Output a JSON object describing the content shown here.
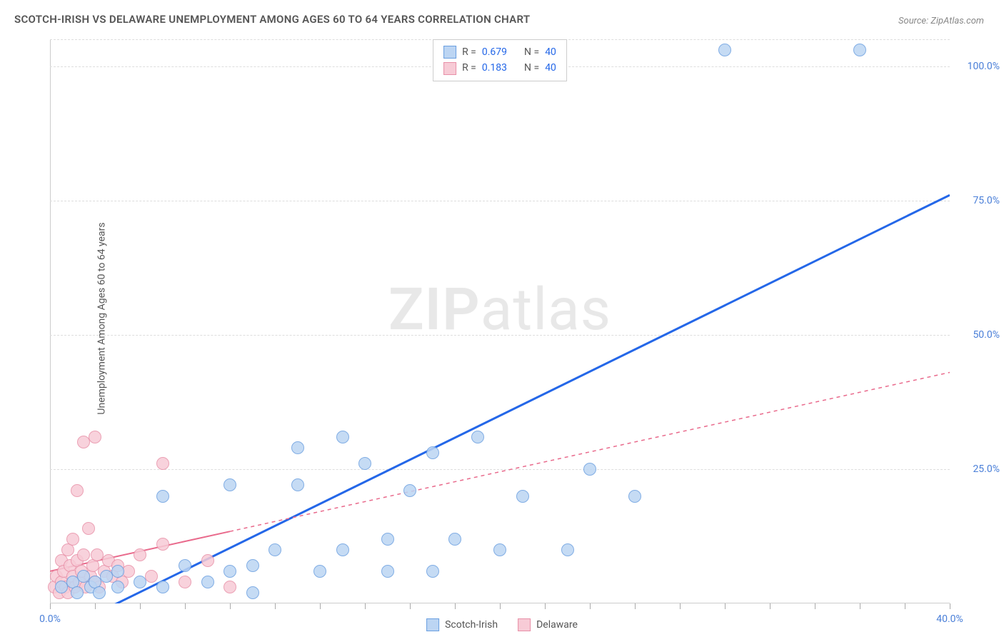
{
  "title": "SCOTCH-IRISH VS DELAWARE UNEMPLOYMENT AMONG AGES 60 TO 64 YEARS CORRELATION CHART",
  "source": "Source: ZipAtlas.com",
  "y_axis_label": "Unemployment Among Ages 60 to 64 years",
  "watermark": {
    "bold": "ZIP",
    "light": "atlas"
  },
  "chart": {
    "type": "scatter",
    "background_color": "#ffffff",
    "grid_color": "#dddddd",
    "axis_color": "#cccccc",
    "xlim": [
      0,
      40
    ],
    "ylim": [
      0,
      105
    ],
    "x_ticks_minor": [
      0,
      2,
      4,
      6,
      8,
      10,
      12,
      14,
      16,
      18,
      20,
      22,
      24,
      26,
      28,
      30,
      32,
      34,
      36,
      38,
      40
    ],
    "x_tick_labels": [
      {
        "pos": 0,
        "label": "0.0%"
      },
      {
        "pos": 40,
        "label": "40.0%"
      }
    ],
    "y_gridlines": [
      25,
      50,
      75,
      100,
      105
    ],
    "y_tick_labels": [
      {
        "pos": 25,
        "label": "25.0%"
      },
      {
        "pos": 50,
        "label": "50.0%"
      },
      {
        "pos": 75,
        "label": "75.0%"
      },
      {
        "pos": 100,
        "label": "100.0%"
      }
    ],
    "series": [
      {
        "name": "Scotch-Irish",
        "legend_label": "Scotch-Irish",
        "point_fill": "#bcd5f3",
        "point_stroke": "#6a9fe0",
        "point_radius": 9,
        "trend_color": "#2467e8",
        "trend_width": 3,
        "trend_dash": "none",
        "trend": {
          "x1": 2,
          "y1": -2,
          "x2": 40,
          "y2": 76
        },
        "R": "0.679",
        "N": "40",
        "points": [
          [
            0.5,
            3
          ],
          [
            1,
            4
          ],
          [
            1.2,
            2
          ],
          [
            1.5,
            5
          ],
          [
            1.8,
            3
          ],
          [
            2,
            4
          ],
          [
            2.2,
            2
          ],
          [
            2.5,
            5
          ],
          [
            3,
            3
          ],
          [
            3,
            6
          ],
          [
            4,
            4
          ],
          [
            5,
            3
          ],
          [
            5,
            20
          ],
          [
            6,
            7
          ],
          [
            7,
            4
          ],
          [
            8,
            6
          ],
          [
            8,
            22
          ],
          [
            9,
            7
          ],
          [
            9,
            2
          ],
          [
            10,
            10
          ],
          [
            11,
            22
          ],
          [
            11,
            29
          ],
          [
            12,
            6
          ],
          [
            13,
            10
          ],
          [
            13,
            31
          ],
          [
            14,
            26
          ],
          [
            15,
            6
          ],
          [
            15,
            12
          ],
          [
            16,
            21
          ],
          [
            17,
            6
          ],
          [
            17,
            28
          ],
          [
            18,
            12
          ],
          [
            19,
            31
          ],
          [
            20,
            10
          ],
          [
            21,
            20
          ],
          [
            23,
            10
          ],
          [
            24,
            25
          ],
          [
            26,
            20
          ],
          [
            30,
            103
          ],
          [
            36,
            103
          ]
        ]
      },
      {
        "name": "Delaware",
        "legend_label": "Delaware",
        "point_fill": "#f7cbd6",
        "point_stroke": "#e890a8",
        "point_radius": 9,
        "trend_color": "#e96a8c",
        "trend_width": 2,
        "trend_dash": "5,5",
        "trend_solid_until": 8,
        "trend": {
          "x1": 0,
          "y1": 6,
          "x2": 40,
          "y2": 43
        },
        "R": "0.183",
        "N": "40",
        "points": [
          [
            0.2,
            3
          ],
          [
            0.3,
            5
          ],
          [
            0.4,
            2
          ],
          [
            0.5,
            8
          ],
          [
            0.5,
            4
          ],
          [
            0.6,
            6
          ],
          [
            0.7,
            3
          ],
          [
            0.8,
            10
          ],
          [
            0.8,
            2
          ],
          [
            0.9,
            7
          ],
          [
            1,
            5
          ],
          [
            1,
            12
          ],
          [
            1.1,
            3
          ],
          [
            1.2,
            8
          ],
          [
            1.2,
            21
          ],
          [
            1.3,
            4
          ],
          [
            1.4,
            6
          ],
          [
            1.5,
            9
          ],
          [
            1.5,
            30
          ],
          [
            1.6,
            3
          ],
          [
            1.7,
            14
          ],
          [
            1.8,
            5
          ],
          [
            1.9,
            7
          ],
          [
            2,
            4
          ],
          [
            2,
            31
          ],
          [
            2.1,
            9
          ],
          [
            2.2,
            3
          ],
          [
            2.4,
            6
          ],
          [
            2.6,
            8
          ],
          [
            2.8,
            5
          ],
          [
            3,
            7
          ],
          [
            3.2,
            4
          ],
          [
            3.5,
            6
          ],
          [
            4,
            9
          ],
          [
            4.5,
            5
          ],
          [
            5,
            26
          ],
          [
            5,
            11
          ],
          [
            6,
            4
          ],
          [
            7,
            8
          ],
          [
            8,
            3
          ]
        ]
      }
    ],
    "stats_labels": {
      "R": "R =",
      "N": "N ="
    }
  }
}
